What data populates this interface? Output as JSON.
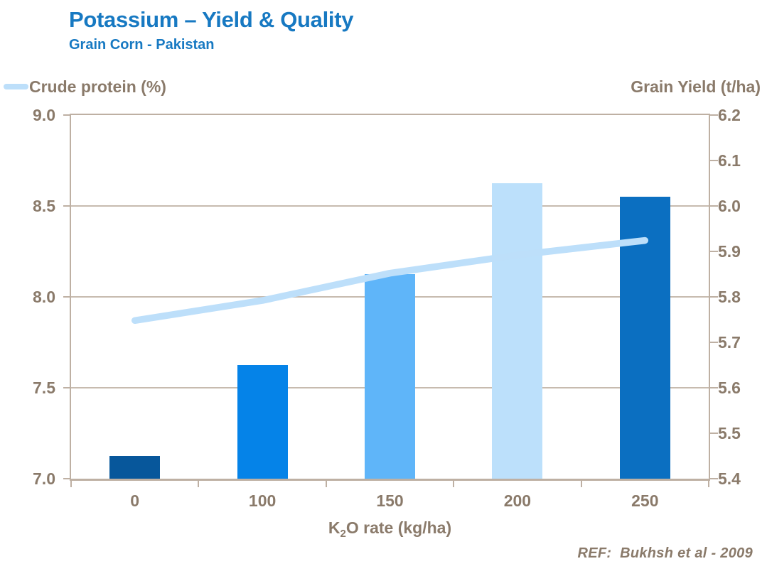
{
  "header": {
    "title": "Potassium – Yield & Quality",
    "subtitle": "Grain Corn - Pakistan"
  },
  "legend": {
    "crude_protein_label": "Crude protein (%)"
  },
  "axes": {
    "right_title": "Grain Yield (t/ha)",
    "left_ticks": [
      "9.0",
      "8.5",
      "8.0",
      "7.5",
      "7.0"
    ],
    "right_ticks": [
      "6.2",
      "6.1",
      "6.0",
      "5.9",
      "5.8",
      "5.7",
      "5.6",
      "5.5",
      "5.4"
    ],
    "x_categories": [
      "0",
      "100",
      "150",
      "200",
      "250"
    ],
    "x_title": {
      "prefix": "K",
      "sub": "2",
      "suffix": "O rate (kg/ha)"
    }
  },
  "footer": {
    "reference": "REF:  Bukhsh et al - 2009"
  },
  "colors": {
    "title_blue": "#1779C2",
    "label_brown": "#8A7A6A",
    "axis_line": "#BEB0A3",
    "gridline": "#C7BBAF",
    "bar_colors": [
      "#07579B",
      "#0583E8",
      "#5FB5F9",
      "#BCE0FB",
      "#0B6FC1"
    ],
    "line_color": "#BDDFFA"
  },
  "chart_data": {
    "type": "bar",
    "title": "Potassium – Yield & Quality",
    "subtitle": "Grain Corn - Pakistan",
    "categories": [
      "0",
      "100",
      "150",
      "200",
      "250"
    ],
    "series": [
      {
        "name": "Grain Yield (t/ha)",
        "type": "bar",
        "axis": "right",
        "values": [
          5.45,
          5.65,
          5.85,
          6.05,
          6.02
        ],
        "bar_colors": [
          "#07579B",
          "#0583E8",
          "#5FB5F9",
          "#BCE0FB",
          "#0B6FC1"
        ]
      },
      {
        "name": "Crude protein (%)",
        "type": "line",
        "axis": "left",
        "values": [
          7.87,
          7.98,
          8.13,
          8.23,
          8.31
        ],
        "color": "#BDDFFA"
      }
    ],
    "xlabel": "K2O rate (kg/ha)",
    "left_axis": {
      "label": "Crude protein (%)",
      "min": 7.0,
      "max": 9.0,
      "tick_step": 0.5
    },
    "right_axis": {
      "label": "Grain Yield (t/ha)",
      "min": 5.4,
      "max": 6.2,
      "tick_step": 0.1
    },
    "grid": "horizontal",
    "legend_position": "top-left",
    "reference": "REF:  Bukhsh et al - 2009"
  }
}
